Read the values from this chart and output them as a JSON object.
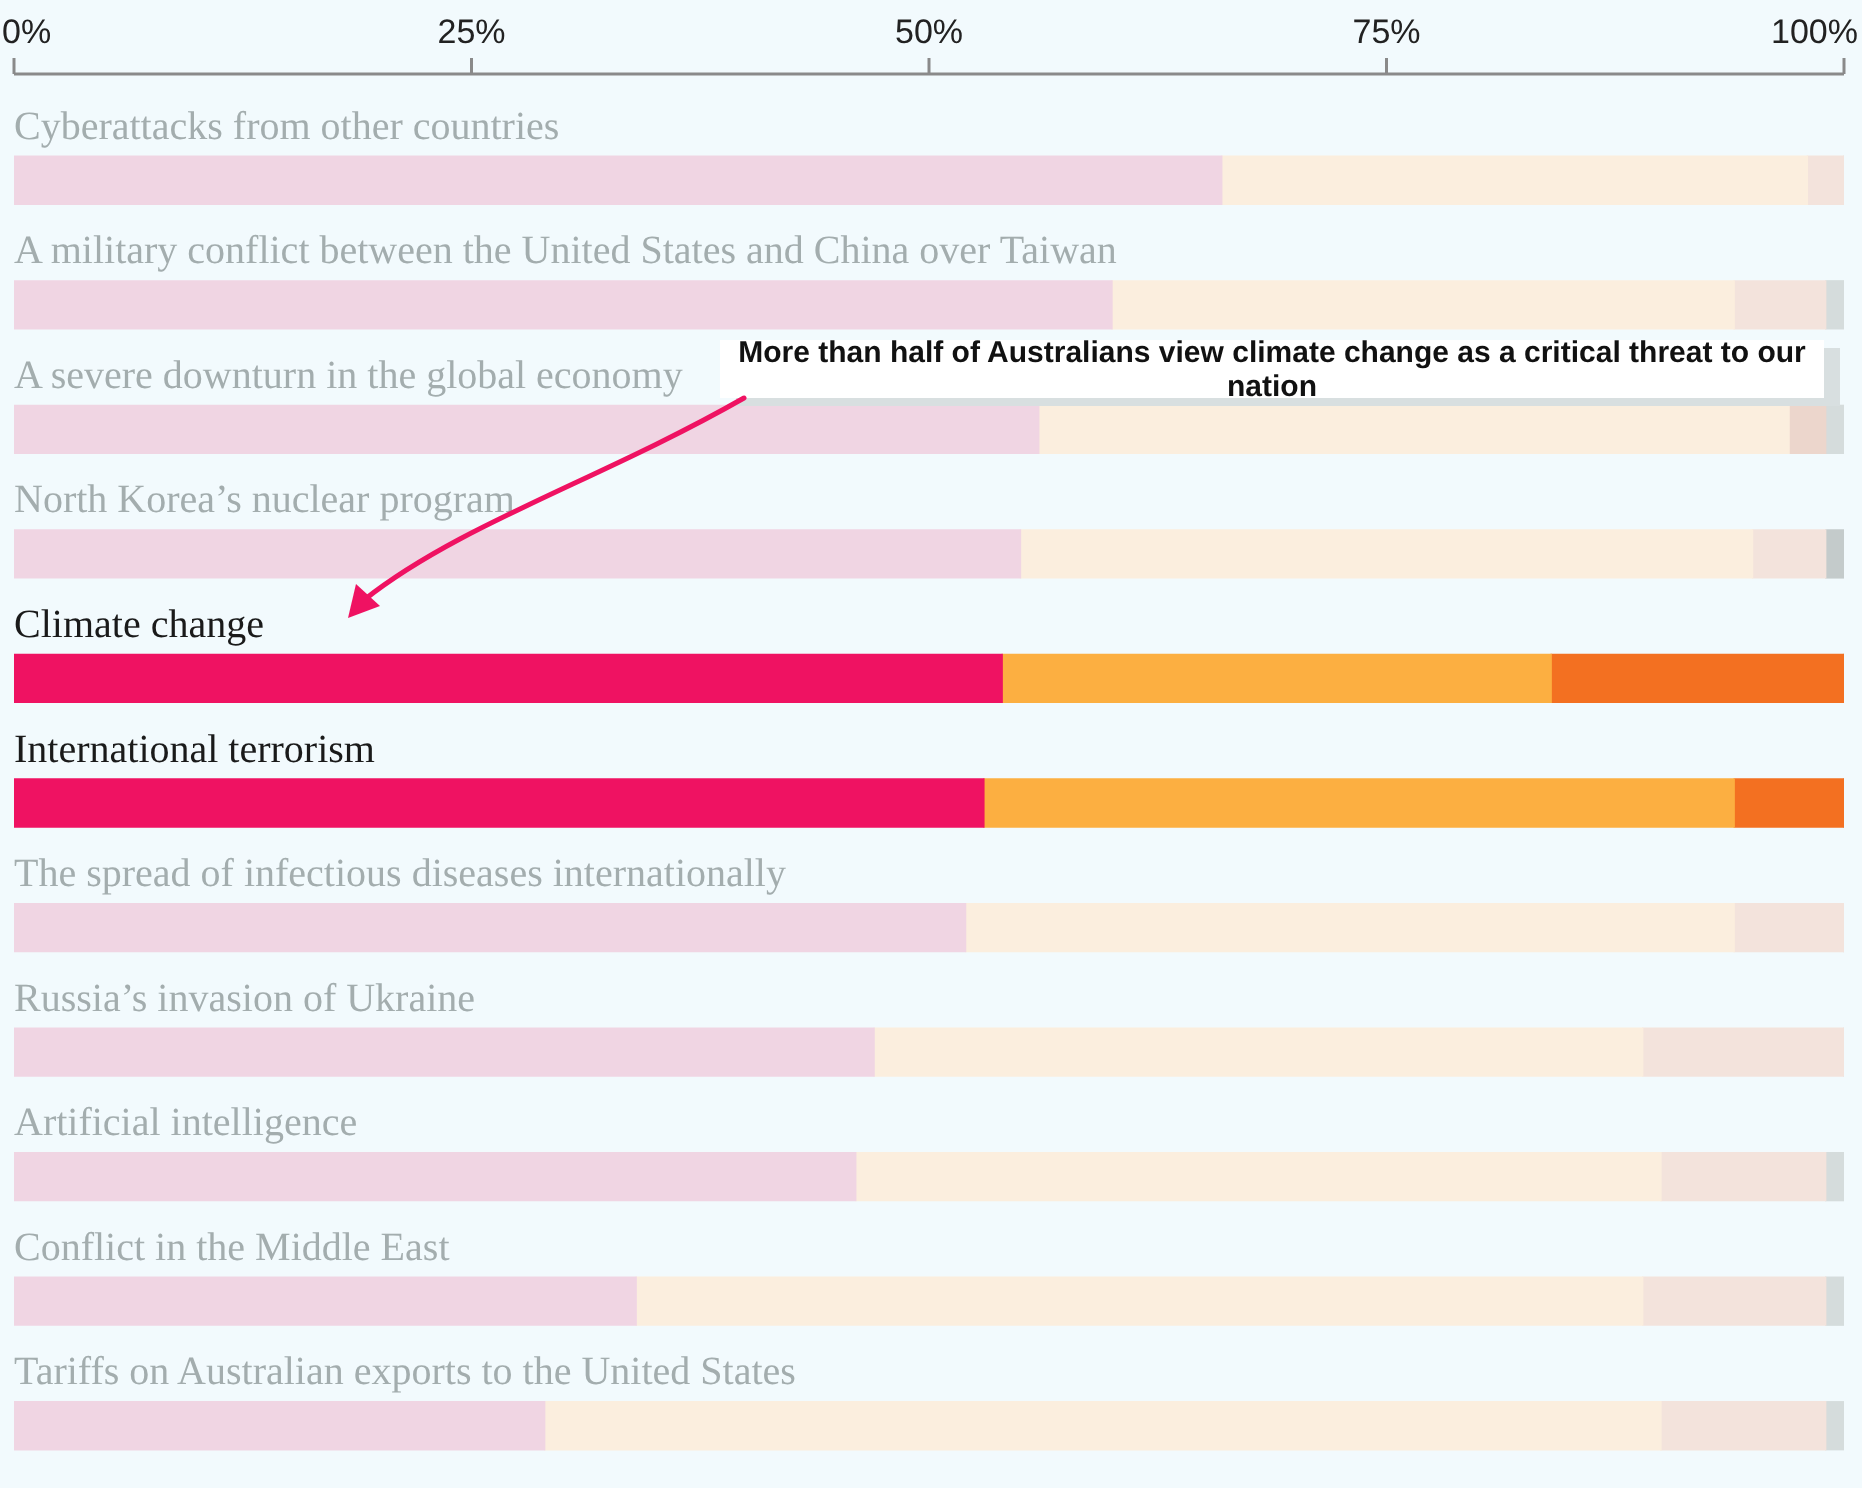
{
  "chart_data": {
    "type": "bar",
    "orientation": "horizontal",
    "stacked": true,
    "categories": [
      "Cyberattacks from other countries",
      "A military conflict between the United States and China over Taiwan",
      "A severe downturn in the global economy",
      "North Korea’s nuclear program",
      "Climate change",
      "International terrorism",
      "The spread of infectious diseases internationally",
      "Russia’s invasion of Ukraine",
      "Artificial intelligence",
      "Conflict in the Middle East",
      "Tariffs on Australian exports to the United States"
    ],
    "series": [
      {
        "color": "#ef1262",
        "colors": [
          "#f0d5e3",
          "#f0d5e3",
          "#f0d5e3",
          "#f0d5e3",
          "#ef1262",
          "#ef1262",
          "#f0d5e3",
          "#f0d5e3",
          "#f0d5e3",
          "#f0d5e3",
          "#f0d5e3"
        ],
        "values": [
          66,
          60,
          56,
          55,
          54,
          53,
          52,
          47,
          46,
          34,
          29
        ]
      },
      {
        "color": "#fcaf41",
        "colors": [
          "#fbeede",
          "#fbeede",
          "#fbeede",
          "#fbeede",
          "#fcaf41",
          "#fcaf41",
          "#fbeede",
          "#fbeede",
          "#fbeede",
          "#fbeede",
          "#fbeede"
        ],
        "values": [
          32,
          34,
          41,
          40,
          30,
          41,
          42,
          42,
          44,
          55,
          61
        ]
      },
      {
        "color": "#f37021",
        "colors": [
          "#f3e3dc",
          "#f3e3dc",
          "#ecd6cc",
          "#f3e3dc",
          "#f37021",
          "#f37021",
          "#f3e3dc",
          "#f3e3dc",
          "#f3e3dc",
          "#f3e3dc",
          "#f3e3dc"
        ],
        "values": [
          2,
          5,
          2,
          4,
          16,
          6,
          6,
          11,
          9,
          10,
          9
        ]
      },
      {
        "color": "#9aa5a5",
        "colors": [
          "#d5dcdc",
          "#d5dcdc",
          "#d5dcdc",
          "#c4cbcb",
          "#9aa5a5",
          "#9aa5a5",
          "#d5dcdc",
          "#d5dcdc",
          "#d5dcdc",
          "#d5dcdc",
          "#d5dcdc"
        ],
        "values": [
          0,
          1,
          1,
          1,
          0,
          0,
          0,
          0,
          1,
          1,
          1
        ]
      }
    ],
    "xlim": [
      0,
      100
    ],
    "xticks": [
      {
        "value": 0,
        "label": "0%"
      },
      {
        "value": 25,
        "label": "25%"
      },
      {
        "value": 50,
        "label": "50%"
      },
      {
        "value": 75,
        "label": "75%"
      },
      {
        "value": 100,
        "label": "100%"
      }
    ],
    "annotations": [
      "More than half of Australians view climate change as a critical threat to our nation"
    ]
  }
}
